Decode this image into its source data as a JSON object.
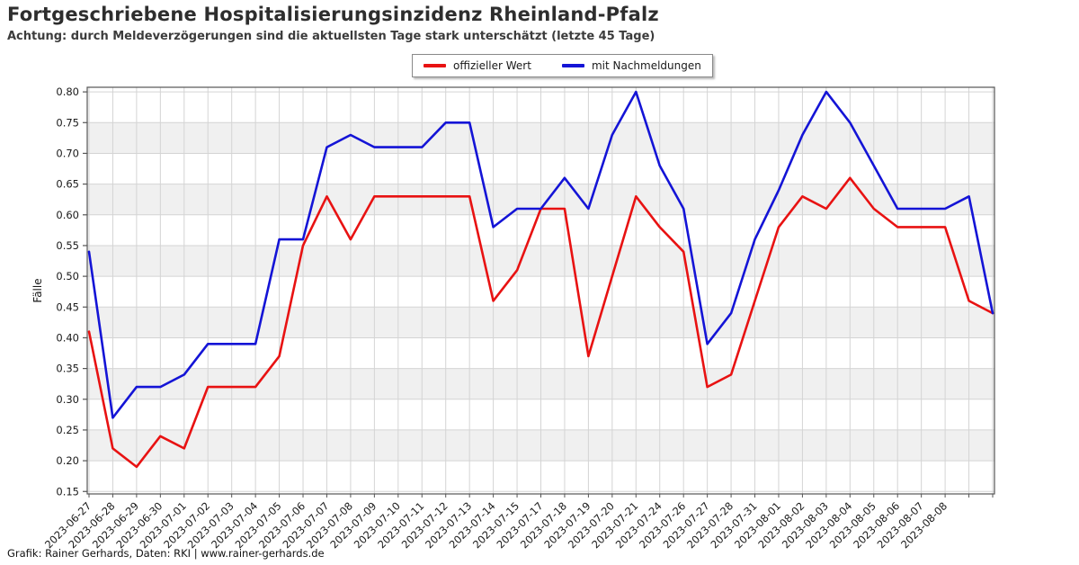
{
  "header": {
    "title": "Fortgeschriebene Hospitalisierungsinzidenz Rheinland-Pfalz",
    "subtitle": "Achtung: durch Meldeverzögerungen sind die aktuellsten Tage stark unterschätzt (letzte 45 Tage)"
  },
  "legend": {
    "items": [
      {
        "label": "offizieller Wert",
        "color": "#e81212"
      },
      {
        "label": "mit Nachmeldungen",
        "color": "#1414d6"
      }
    ]
  },
  "chart_data": {
    "type": "line",
    "title": "Fortgeschriebene Hospitalisierungsinzidenz Rheinland-Pfalz",
    "xlabel": "",
    "ylabel": "Fälle",
    "ylim": [
      0.146,
      0.8075
    ],
    "grid": true,
    "legend_position": "top-center",
    "band_color": "#f0f0f0",
    "grid_color": "#d4d4d4",
    "spine_color": "#555555",
    "gray_bands": [
      [
        0.2,
        0.25
      ],
      [
        0.3,
        0.35
      ],
      [
        0.4,
        0.45
      ],
      [
        0.5,
        0.55
      ],
      [
        0.6,
        0.65
      ],
      [
        0.7,
        0.75
      ]
    ],
    "ytick_labels": [
      "0.15",
      "0.20",
      "0.25",
      "0.30",
      "0.35",
      "0.40",
      "0.45",
      "0.50",
      "0.55",
      "0.60",
      "0.65",
      "0.70",
      "0.75",
      "0.80"
    ],
    "categories": [
      "2023-06-27",
      "2023-06-28",
      "2023-06-29",
      "2023-06-30",
      "2023-07-01",
      "2023-07-02",
      "2023-07-03",
      "2023-07-04",
      "2023-07-05",
      "2023-07-06",
      "2023-07-07",
      "2023-07-08",
      "2023-07-09",
      "2023-07-10",
      "2023-07-11",
      "2023-07-12",
      "2023-07-13",
      "2023-07-14",
      "2023-07-15",
      "2023-07-17",
      "2023-07-18",
      "2023-07-19",
      "2023-07-20",
      "2023-07-21",
      "2023-07-24",
      "2023-07-26",
      "2023-07-27",
      "2023-07-28",
      "2023-07-31",
      "2023-08-01",
      "2023-08-02",
      "2023-08-03",
      "2023-08-04",
      "2023-08-05",
      "2023-08-06",
      "2023-08-07",
      "2023-08-08",
      "",
      ""
    ],
    "series": [
      {
        "name": "offizieller Wert",
        "color": "#e81212",
        "values": [
          0.41,
          0.22,
          0.19,
          0.24,
          0.22,
          0.32,
          0.32,
          0.32,
          0.37,
          0.55,
          0.63,
          0.56,
          0.63,
          0.63,
          0.63,
          0.63,
          0.63,
          0.46,
          0.51,
          0.61,
          0.61,
          0.37,
          0.5,
          0.63,
          0.58,
          0.54,
          0.32,
          0.34,
          0.46,
          0.58,
          0.63,
          0.61,
          0.66,
          0.61,
          0.58,
          0.58,
          0.58,
          0.46,
          0.44
        ]
      },
      {
        "name": "mit Nachmeldungen",
        "color": "#1414d6",
        "values": [
          0.54,
          0.27,
          0.32,
          0.32,
          0.34,
          0.39,
          0.39,
          0.39,
          0.56,
          0.56,
          0.71,
          0.73,
          0.71,
          0.71,
          0.71,
          0.75,
          0.75,
          0.58,
          0.61,
          0.61,
          0.66,
          0.61,
          0.73,
          0.8,
          0.68,
          0.61,
          0.39,
          0.44,
          0.56,
          0.64,
          0.73,
          0.8,
          0.75,
          0.68,
          0.61,
          0.61,
          0.61,
          0.63,
          0.44
        ]
      }
    ]
  },
  "footer": {
    "credit": "Grafik: Rainer Gerhards, Daten: RKI | www.rainer-gerhards.de"
  }
}
